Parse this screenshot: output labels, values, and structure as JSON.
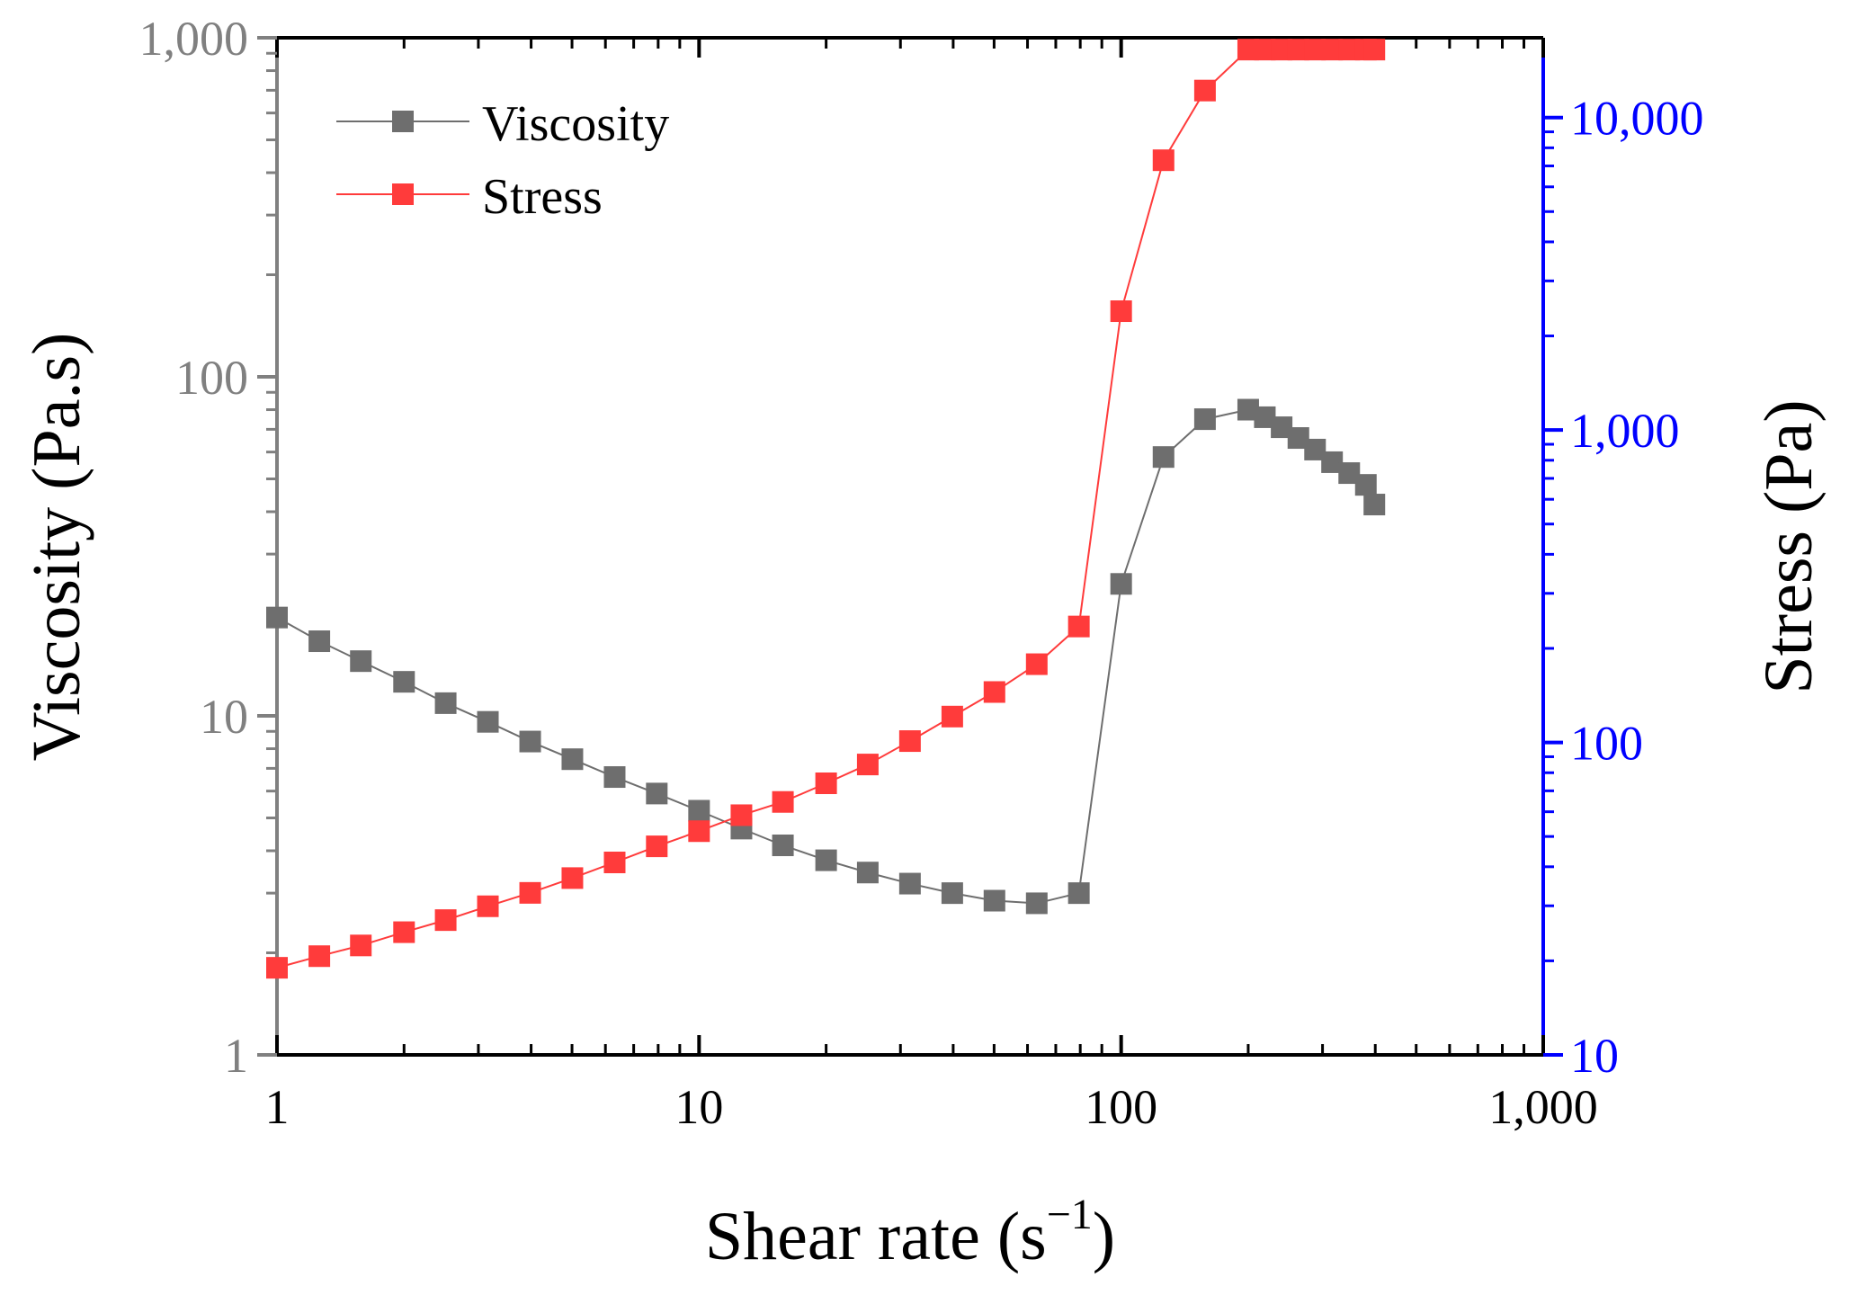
{
  "chart_data": {
    "type": "line",
    "x_axis": {
      "label_main": "Shear rate (s",
      "label_sup": "−1",
      "label_close": ")",
      "scale": "log",
      "range": [
        1,
        1000
      ],
      "tick_labels": [
        "1",
        "10",
        "100",
        "1,000"
      ],
      "color": "#000000"
    },
    "y_left": {
      "label": "Viscosity (Pa.s)",
      "scale": "log",
      "range": [
        1,
        1000
      ],
      "tick_labels": [
        "1",
        "10",
        "100",
        "1,000"
      ],
      "color": "#808080"
    },
    "y_right": {
      "label": "Stress (Pa)",
      "scale": "log",
      "range": [
        10,
        18000
      ],
      "tick_labels": [
        "10",
        "100",
        "1,000",
        "10,000"
      ],
      "color": "#0000ff"
    },
    "legend": {
      "position": "top-left"
    },
    "series": [
      {
        "name": "Viscosity",
        "axis": "left",
        "color": "#6e6e6e",
        "x": [
          1,
          1.26,
          1.58,
          2,
          2.51,
          3.16,
          3.98,
          5.01,
          6.31,
          7.94,
          10,
          12.6,
          15.8,
          20,
          25.1,
          31.6,
          39.8,
          50.1,
          63.1,
          79.4,
          100,
          126,
          158,
          200,
          219,
          240,
          263,
          288,
          316,
          347,
          380,
          398
        ],
        "y": [
          19.5,
          16.6,
          14.5,
          12.6,
          10.9,
          9.6,
          8.4,
          7.45,
          6.6,
          5.9,
          5.25,
          4.65,
          4.15,
          3.75,
          3.45,
          3.2,
          3.0,
          2.85,
          2.8,
          3.0,
          24.5,
          58,
          75,
          80,
          76,
          71,
          66,
          61,
          56,
          52,
          48,
          42
        ]
      },
      {
        "name": "Stress",
        "axis": "right",
        "color": "#ff3b3b",
        "x": [
          1,
          1.26,
          1.58,
          2,
          2.51,
          3.16,
          3.98,
          5.01,
          6.31,
          7.94,
          10,
          12.6,
          15.8,
          20,
          25.1,
          31.6,
          39.8,
          50.1,
          63.1,
          79.4,
          100,
          126,
          158,
          200,
          219,
          240,
          263,
          288,
          316,
          347,
          380,
          398
        ],
        "y": [
          19,
          20.7,
          22.4,
          24.7,
          27,
          29.9,
          33,
          36.8,
          41.3,
          46.5,
          52,
          58.5,
          64.5,
          74,
          85,
          101,
          121,
          145,
          178,
          235,
          2400,
          7300,
          12200,
          16500,
          16500,
          16500,
          16500,
          16500,
          16500,
          16500,
          16500,
          16500
        ]
      }
    ]
  }
}
